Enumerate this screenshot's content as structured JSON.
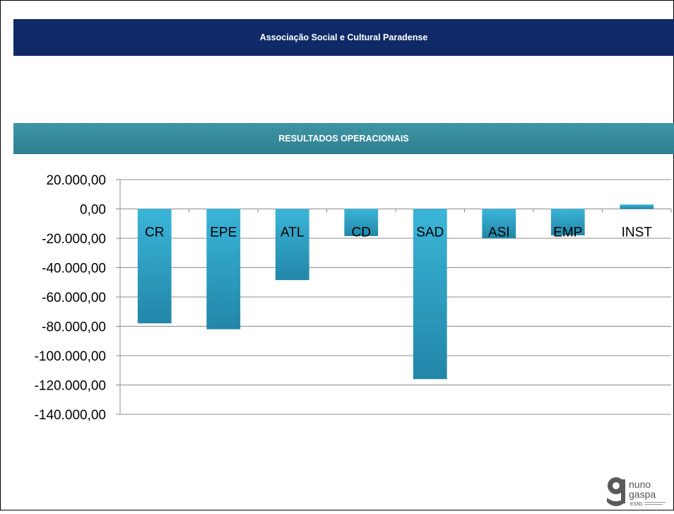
{
  "header": {
    "title": "Associação Social e Cultural Paradense"
  },
  "section": {
    "title": "RESULTADOS OPERACIONAIS"
  },
  "chart_data": {
    "type": "bar",
    "title": "",
    "xlabel": "",
    "ylabel": "",
    "categories": [
      "CR",
      "EPE",
      "ATL",
      "CD",
      "SAD",
      "ASI",
      "EMP",
      "INST"
    ],
    "values": [
      -78000,
      -82000,
      -48500,
      -18500,
      -116000,
      -20000,
      -18000,
      3000
    ],
    "ylim": [
      -140000,
      20000
    ],
    "yticks": [
      20000,
      0,
      -20000,
      -40000,
      -60000,
      -80000,
      -100000,
      -120000,
      -140000
    ],
    "ytick_labels": [
      "20.000,00",
      "0,00",
      "-20.000,00",
      "-40.000,00",
      "-60.000,00",
      "-80.000,00",
      "-100.000,00",
      "-120.000,00",
      "-140.000,00"
    ],
    "grid": true,
    "legend": false,
    "bar_color": "#2ea3c6"
  },
  "logo": {
    "text_top": "nuno",
    "text_bottom": "gaspa",
    "tag": "ESNL"
  }
}
